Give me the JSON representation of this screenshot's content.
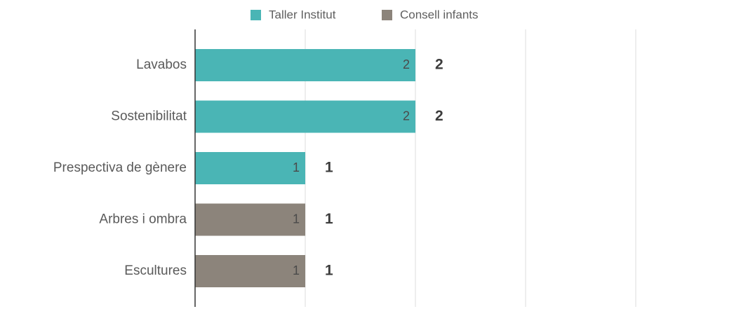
{
  "chart_data": {
    "type": "bar",
    "orientation": "horizontal",
    "stacked": true,
    "categories": [
      "Lavabos",
      "Sostenibilitat",
      "Prespectiva de gènere",
      "Arbres i ombra",
      "Escultures"
    ],
    "series": [
      {
        "name": "Taller Institut",
        "color": "#4ab5b5",
        "values": [
          2,
          2,
          1,
          0,
          0
        ]
      },
      {
        "name": "Consell infants",
        "color": "#8c847b",
        "values": [
          0,
          0,
          0,
          1,
          1
        ]
      }
    ],
    "totals": [
      2,
      2,
      1,
      1,
      1
    ],
    "xlim": [
      0,
      4
    ],
    "grid": true,
    "legend_position": "top",
    "title": "",
    "xlabel": "",
    "ylabel": ""
  }
}
